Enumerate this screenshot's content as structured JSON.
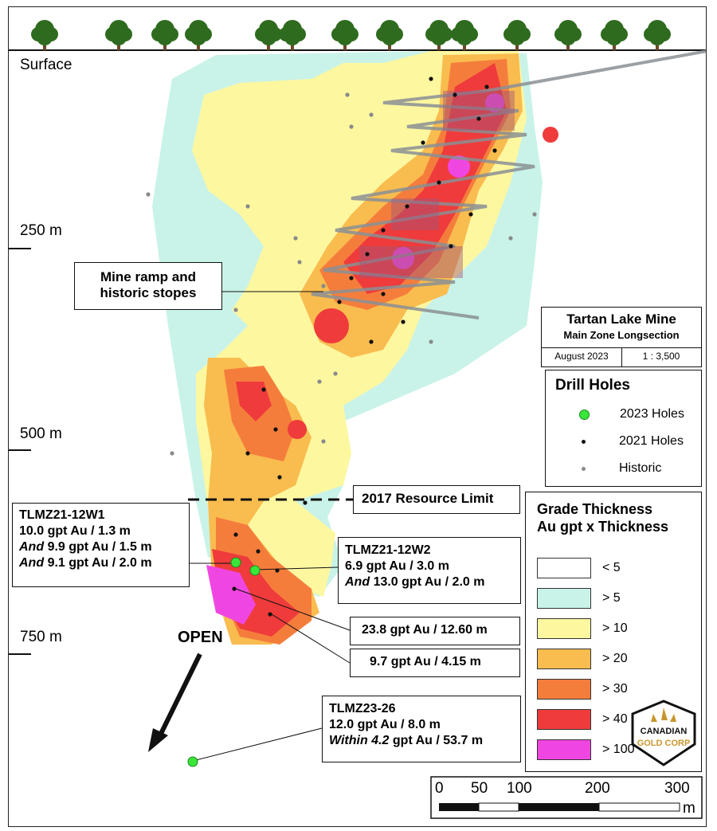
{
  "surface_label": "Surface",
  "depth_labels": [
    "250 m",
    "500 m",
    "750 m"
  ],
  "open_label": "OPEN",
  "resource_limit_label": "2017 Resource Limit",
  "ramp_label": [
    "Mine ramp and",
    "historic stopes"
  ],
  "title_box": {
    "title": "Tartan Lake Mine",
    "subtitle": "Main Zone Longsection",
    "date": "August 2023",
    "scale": "1 : 3,500"
  },
  "drill_legend": {
    "title": "Drill Holes",
    "items": [
      {
        "label": "2023 Holes",
        "color": "#39e639"
      },
      {
        "label": "2021 Holes",
        "color": "#111111"
      },
      {
        "label": "Historic",
        "color": "#8a8a8a"
      }
    ]
  },
  "grade_legend": {
    "title_line1": "Grade Thickness",
    "title_line2": "Au gpt x Thickness",
    "items": [
      {
        "label": "< 5",
        "color": "#ffffff"
      },
      {
        "label": "> 5",
        "color": "#c9f3e8"
      },
      {
        "label": "> 10",
        "color": "#fdf7a0"
      },
      {
        "label": "> 20",
        "color": "#f9bc4f"
      },
      {
        "label": "> 30",
        "color": "#f57d3c"
      },
      {
        "label": "> 40",
        "color": "#ef3b3b"
      },
      {
        "label": "> 100",
        "color": "#f046e1"
      }
    ]
  },
  "callouts": {
    "w1": {
      "hole": "TLMZ21-12W1",
      "lines": [
        "10.0 gpt Au / 1.3 m",
        "9.9 gpt Au / 1.5 m",
        "9.1 gpt Au / 2.0 m"
      ],
      "prefix": "And"
    },
    "w2": {
      "hole": "TLMZ21-12W2",
      "lines": [
        "6.9 gpt Au / 3.0 m",
        "13.0 gpt Au / 2.0 m"
      ],
      "prefix": "And"
    },
    "i1": "23.8 gpt Au / 12.60 m",
    "i2": "9.7 gpt Au / 4.15 m",
    "h26": {
      "hole": "TLMZ23-26",
      "line1": "12.0 gpt Au / 8.0 m",
      "prefix": "Within",
      "line2_val": "4.2",
      "line2_rest": "gpt Au / 53.7 m"
    }
  },
  "scale_bar": {
    "ticks": [
      "0",
      "50",
      "100",
      "200",
      "300"
    ],
    "unit": "m"
  },
  "logo": {
    "line1": "CANADIAN",
    "line2": "GOLD CORP",
    "color": "#c8962e"
  }
}
